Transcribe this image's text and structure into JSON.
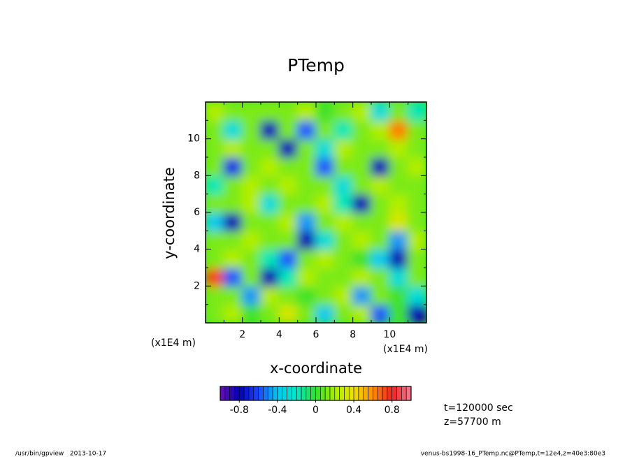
{
  "chart_data": {
    "type": "heatmap",
    "title": "PTemp",
    "xlabel": "x-coordinate",
    "ylabel": "y-coordinate",
    "xunit": "(x1E4 m)",
    "yunit": "(x1E4 m)",
    "x": [
      0.5,
      1.5,
      2.5,
      3.5,
      4.5,
      5.5,
      6.5,
      7.5,
      8.5,
      9.5,
      10.5,
      11.5
    ],
    "y": [
      0.5,
      1.5,
      2.5,
      3.5,
      4.5,
      5.5,
      6.5,
      7.5,
      8.5,
      9.5,
      10.5,
      11.5
    ],
    "z": [
      [
        0.1,
        0.2,
        0,
        0.1,
        0.3,
        0.1,
        -0.4,
        0.1,
        0.2,
        -0.6,
        0,
        -0.8
      ],
      [
        0.1,
        0.1,
        -0.5,
        0.2,
        0.1,
        0,
        0.1,
        0.2,
        -0.5,
        0.1,
        0,
        -0.3
      ],
      [
        0.7,
        -0.6,
        0.1,
        -0.8,
        -0.2,
        0.2,
        0.1,
        0.1,
        0.2,
        0.1,
        -0.3,
        0.1
      ],
      [
        0.1,
        0.2,
        0.1,
        -0.2,
        -0.6,
        0.1,
        0.2,
        0.1,
        0,
        -0.4,
        -0.8,
        0.1
      ],
      [
        0.1,
        0.1,
        0.2,
        0.1,
        0.1,
        -0.8,
        -0.3,
        0.1,
        0.2,
        0.1,
        -0.5,
        0.2
      ],
      [
        -0.4,
        -0.8,
        0.1,
        0.1,
        0.2,
        -0.5,
        0.1,
        0.2,
        0.1,
        0.1,
        0.3,
        0.1
      ],
      [
        0.1,
        0.1,
        0.2,
        -0.3,
        0.1,
        0.1,
        0.2,
        -0.2,
        -0.8,
        0.1,
        0.2,
        0.1
      ],
      [
        -0.2,
        0.1,
        0.2,
        0.1,
        0.2,
        0.1,
        0.1,
        -0.3,
        0.1,
        0.2,
        0.1,
        0.1
      ],
      [
        0.1,
        -0.7,
        0.1,
        0.2,
        0.1,
        0.1,
        -0.6,
        0.1,
        0.1,
        -0.8,
        0.1,
        0.2
      ],
      [
        0.1,
        0.2,
        0.1,
        0.1,
        -0.8,
        0.1,
        -0.3,
        0.2,
        0.1,
        0.1,
        0.2,
        0.1
      ],
      [
        0.1,
        -0.3,
        0.1,
        -0.8,
        0.1,
        -0.6,
        0.1,
        -0.2,
        0.1,
        0.2,
        0.6,
        0.1
      ],
      [
        0.2,
        0.1,
        0.1,
        0.1,
        0.1,
        0.2,
        0,
        0.1,
        0.2,
        -0.3,
        0.1,
        -0.2
      ]
    ],
    "xlim": [
      0,
      12
    ],
    "ylim": [
      0,
      12
    ],
    "xticks": [
      2,
      4,
      6,
      8,
      10
    ],
    "yticks": [
      2,
      4,
      6,
      8,
      10
    ],
    "xminorticks": [
      1,
      3,
      5,
      7,
      9,
      11
    ],
    "yminorticks": [
      1,
      3,
      5,
      7,
      9,
      11
    ],
    "colorbar": {
      "range": [
        -1,
        1
      ],
      "ticks": [
        -0.8,
        -0.4,
        0,
        0.4,
        0.8
      ],
      "n_colors": 40,
      "colormap": [
        "#6a10b0",
        "#0000b4",
        "#1e46ff",
        "#00c8f0",
        "#00e8c8",
        "#30e030",
        "#a8f000",
        "#f0e000",
        "#ff8c00",
        "#f02020",
        "#f08098"
      ]
    },
    "annotations": [
      "t=120000 sec",
      "z=57700 m"
    ],
    "footer_left": "/usr/bin/gpview   2013-10-17",
    "footer_right": "venus-bs1998-16_PTemp.nc@PTemp,t=12e4,z=40e3:80e3"
  }
}
